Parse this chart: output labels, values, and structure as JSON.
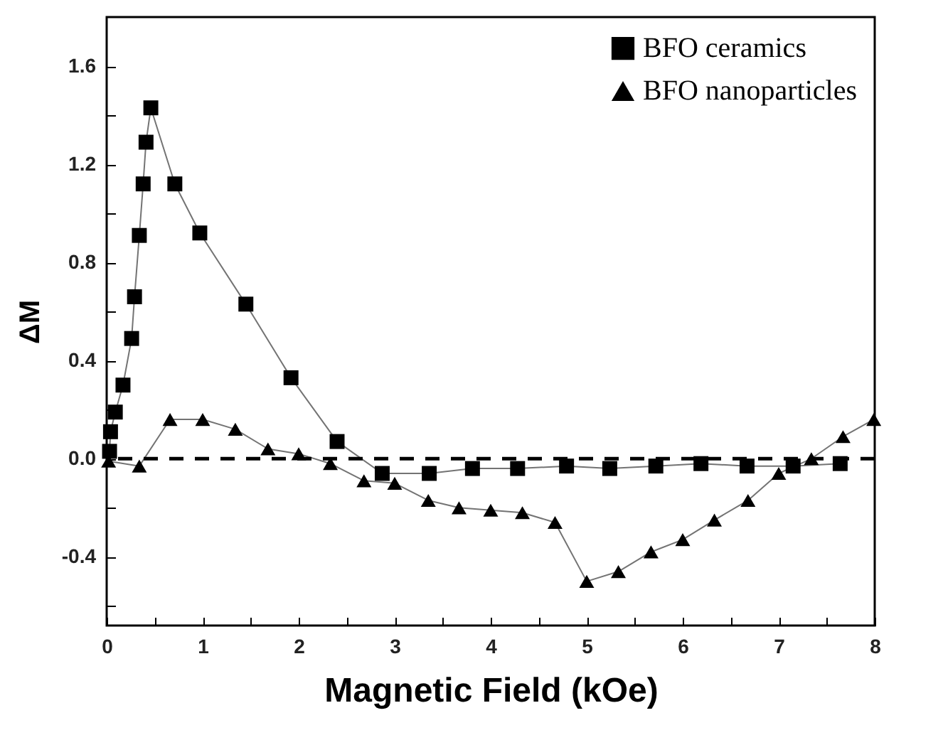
{
  "chart_data": {
    "type": "line",
    "xlabel": "Magnetic Field (kOe)",
    "ylabel": "ΔM",
    "xlim": [
      0,
      8
    ],
    "ylim": [
      -0.68,
      1.8
    ],
    "xticks": [
      0,
      {
        "value": 0.5,
        "label": null
      },
      1,
      {
        "value": 1.5,
        "label": null
      },
      2,
      {
        "value": 2.5,
        "label": null
      },
      3,
      {
        "value": 3.5,
        "label": null
      },
      4,
      {
        "value": 4.5,
        "label": null
      },
      5,
      {
        "value": 5.5,
        "label": null
      },
      6,
      {
        "value": 6.5,
        "label": null
      },
      7,
      {
        "value": 7.5,
        "label": null
      },
      8
    ],
    "yticks": [
      {
        "value": -0.6,
        "label": null
      },
      {
        "value": -0.4,
        "label": "-0.4"
      },
      {
        "value": -0.2,
        "label": null
      },
      {
        "value": 0,
        "label": "0.0"
      },
      {
        "value": 0.2,
        "label": null
      },
      {
        "value": 0.4,
        "label": "0.4"
      },
      {
        "value": 0.6,
        "label": null
      },
      {
        "value": 0.8,
        "label": "0.8"
      },
      {
        "value": 1.0,
        "label": null
      },
      {
        "value": 1.2,
        "label": "1.2"
      },
      {
        "value": 1.4,
        "label": null
      },
      {
        "value": 1.6,
        "label": "1.6"
      }
    ],
    "grid": false,
    "legend": "top right",
    "line_style": "solid",
    "ref_lines": [
      {
        "axis": "y",
        "value": 0,
        "label": null,
        "line_style": "dashed",
        "color": "#000000"
      }
    ],
    "series": [
      {
        "name": "BFO ceramics",
        "color": "#000000",
        "marker": "square",
        "x": [
          0.03,
          0.04,
          0.09,
          0.17,
          0.26,
          0.29,
          0.34,
          0.38,
          0.41,
          0.46,
          0.71,
          0.97,
          1.45,
          1.92,
          2.4,
          2.87,
          3.36,
          3.81,
          4.28,
          4.79,
          5.24,
          5.72,
          6.19,
          6.67,
          7.15,
          7.64
        ],
        "values": [
          0.03,
          0.11,
          0.19,
          0.3,
          0.49,
          0.66,
          0.91,
          1.12,
          1.29,
          1.43,
          1.12,
          0.92,
          0.63,
          0.33,
          0.07,
          -0.06,
          -0.06,
          -0.04,
          -0.04,
          -0.03,
          -0.04,
          -0.03,
          -0.02,
          -0.03,
          -0.03,
          -0.02
        ]
      },
      {
        "name": "BFO nanoparticles",
        "color": "#000000",
        "marker": "triangle",
        "x": [
          0.02,
          0.34,
          0.66,
          1.0,
          1.34,
          1.68,
          2.0,
          2.33,
          2.68,
          3.0,
          3.35,
          3.67,
          4.0,
          4.33,
          4.67,
          5.0,
          5.33,
          5.67,
          6.0,
          6.33,
          6.68,
          7.0,
          7.34,
          7.67,
          7.99
        ],
        "values": [
          -0.01,
          -0.03,
          0.16,
          0.16,
          0.12,
          0.04,
          0.02,
          -0.02,
          -0.09,
          -0.1,
          -0.17,
          -0.2,
          -0.21,
          -0.22,
          -0.26,
          -0.5,
          -0.46,
          -0.38,
          -0.33,
          -0.25,
          -0.17,
          -0.06,
          0.0,
          0.09,
          0.16
        ]
      }
    ]
  }
}
